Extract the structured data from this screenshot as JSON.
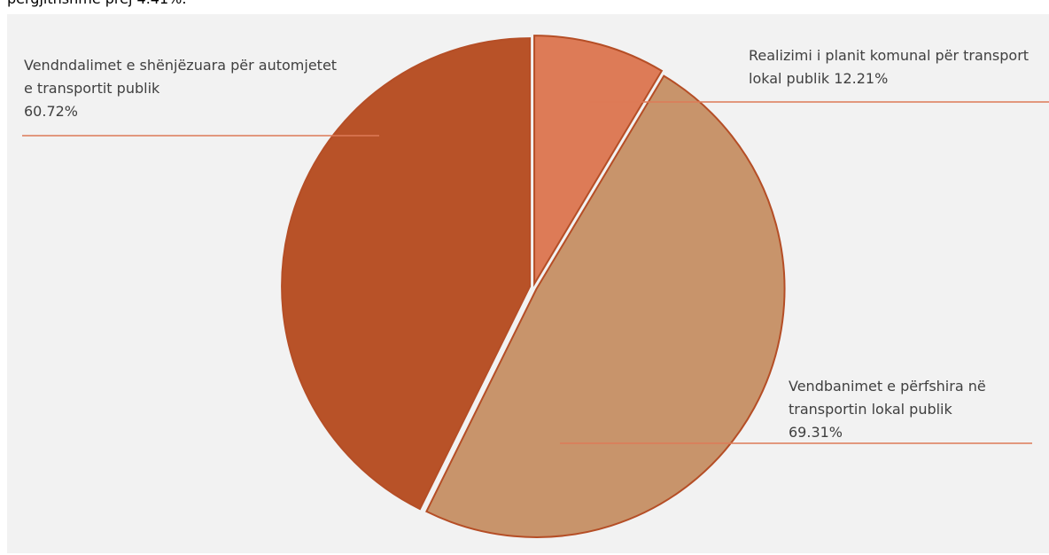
{
  "chart_data": {
    "type": "pie",
    "caption": "përgjithshme prej 4.41%.",
    "categories": [
      "Realizimi i planit komunal për transport lokal publik",
      "Vendbanimet e përfshira në transportin lokal publik",
      "Vendndalimet e shënjëzuara për automjetet e transportit publik"
    ],
    "values": [
      12.21,
      69.31,
      60.72
    ],
    "value_labels": [
      "12.21%",
      "69.31%",
      "60.72%"
    ],
    "colors": [
      "#dd7b57",
      "#c8946b",
      "#b85228"
    ]
  }
}
